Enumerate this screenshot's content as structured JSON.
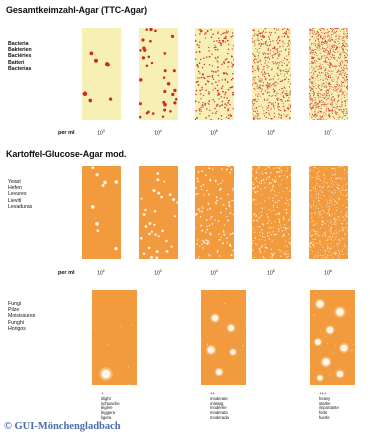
{
  "section1": {
    "title": "Gesamtkeimzahl-Agar (TTC-Agar)",
    "labels": [
      "Bacteria",
      "Bakterien",
      "Bactéries",
      "Batteri",
      "Bacterias"
    ],
    "per_ml": "per  ml",
    "concentrations": [
      {
        "base": "10",
        "exp": "3"
      },
      {
        "base": "10",
        "exp": "4"
      },
      {
        "base": "10",
        "exp": "5"
      },
      {
        "base": "10",
        "exp": "6"
      },
      {
        "base": "10",
        "exp": "7"
      }
    ],
    "agar_color": "#f6f0b4",
    "colony_color": "#cc2a2e"
  },
  "section2": {
    "title": "Kartoffel-Glucose-Agar mod.",
    "labels": [
      "Yeast",
      "Hefen",
      "Levures",
      "Lieviti",
      "Levaduras"
    ],
    "per_ml": "per  ml",
    "concentrations": [
      {
        "base": "10",
        "exp": "2"
      },
      {
        "base": "10",
        "exp": "3"
      },
      {
        "base": "10",
        "exp": "4"
      },
      {
        "base": "10",
        "exp": "5"
      },
      {
        "base": "10",
        "exp": "6"
      }
    ],
    "agar_color": "#f19a3e",
    "colony_color": "#fff6e6"
  },
  "section3": {
    "labels": [
      "Fungi",
      "Pilze",
      "Moisissures",
      "Funghi",
      "Hongos"
    ],
    "levels": [
      {
        "marker": "+",
        "words": [
          "slight",
          "schwache",
          "légère",
          "leggera",
          "ligera"
        ]
      },
      {
        "marker": "++",
        "words": [
          "moderate",
          "mässig",
          "modérée",
          "moderata",
          "moderada"
        ]
      },
      {
        "marker": "+++",
        "words": [
          "heavy",
          "starke",
          "importante",
          "forte",
          "fuerte"
        ]
      }
    ]
  },
  "watermark": "© GUI-Mönchengladbach"
}
